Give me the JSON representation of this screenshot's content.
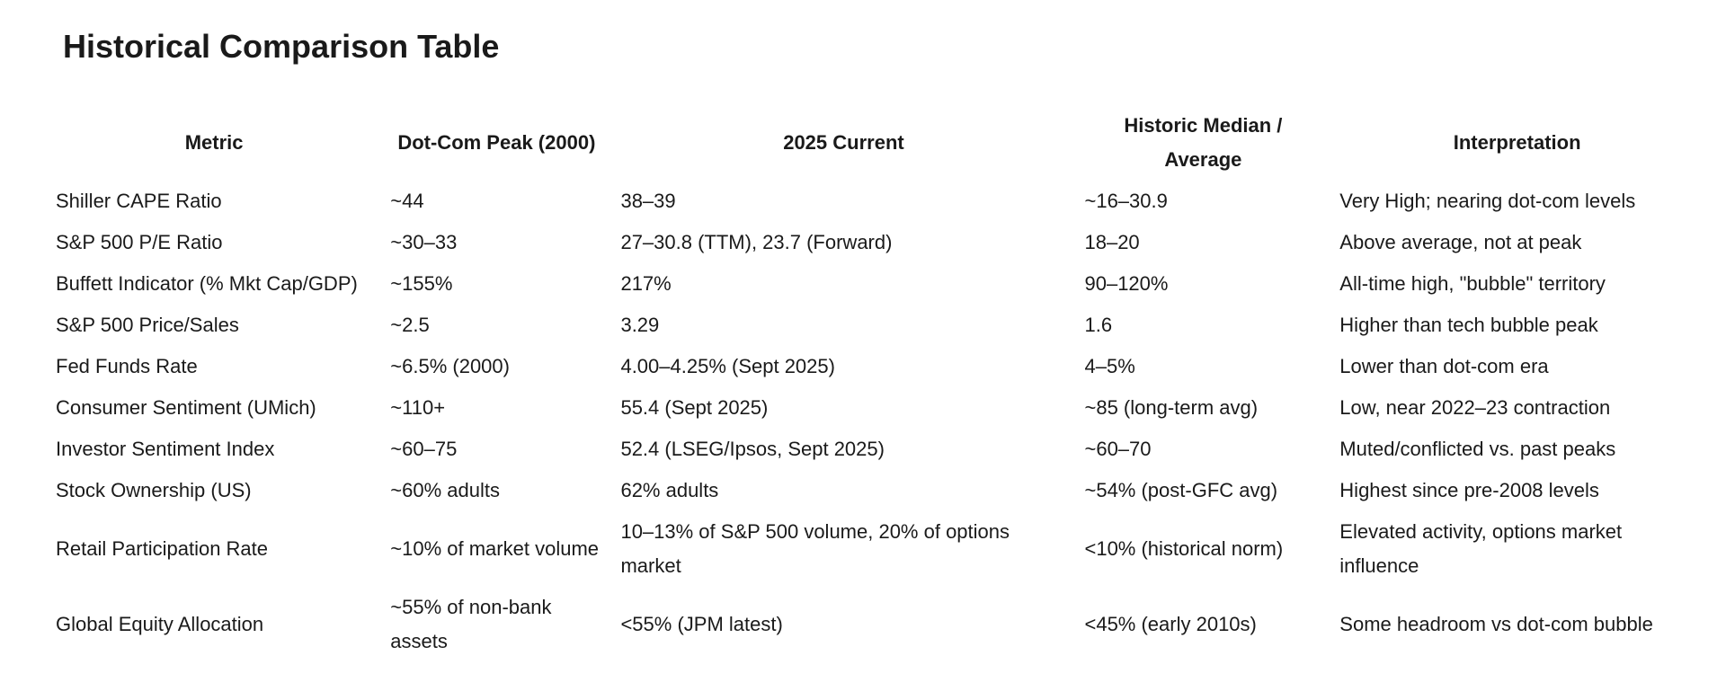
{
  "page": {
    "title": "Historical Comparison Table"
  },
  "colors": {
    "text": "#1a1a1a",
    "background": "#ffffff"
  },
  "table": {
    "columns": [
      {
        "label": "Metric"
      },
      {
        "label": "Dot-Com Peak (2000)"
      },
      {
        "label": "2025 Current"
      },
      {
        "label": "Historic Median / Average"
      },
      {
        "label": "Interpretation"
      }
    ],
    "rows": [
      [
        "Shiller CAPE Ratio",
        "~44",
        "38–39",
        "~16–30.9",
        "Very High; nearing dot-com levels"
      ],
      [
        "S&P 500 P/E Ratio",
        "~30–33",
        "27–30.8 (TTM), 23.7 (Forward)",
        "18–20",
        "Above average, not at peak"
      ],
      [
        "Buffett Indicator (% Mkt Cap/GDP)",
        "~155%",
        "217%",
        "90–120%",
        "All-time high, \"bubble\" territory"
      ],
      [
        "S&P 500 Price/Sales",
        "~2.5",
        "3.29",
        "1.6",
        "Higher than tech bubble peak"
      ],
      [
        "Fed Funds Rate",
        "~6.5% (2000)",
        "4.00–4.25% (Sept 2025)",
        "4–5%",
        "Lower than dot-com era"
      ],
      [
        "Consumer Sentiment (UMich)",
        "~110+",
        "55.4 (Sept 2025)",
        "~85 (long-term avg)",
        "Low, near 2022–23 contraction"
      ],
      [
        "Investor Sentiment Index",
        "~60–75",
        "52.4 (LSEG/Ipsos, Sept 2025)",
        "~60–70",
        "Muted/conflicted vs. past peaks"
      ],
      [
        "Stock Ownership (US)",
        "~60% adults",
        "62% adults",
        "~54% (post-GFC avg)",
        "Highest since pre-2008 levels"
      ],
      [
        "Retail Participation Rate",
        "~10% of market volume",
        "10–13% of S&P 500 volume, 20% of options market",
        "<10% (historical norm)",
        "Elevated activity, options market influence"
      ],
      [
        "Global Equity Allocation",
        "~55% of non-bank assets",
        "<55% (JPM latest)",
        "<45% (early 2010s)",
        "Some headroom vs dot-com bubble"
      ]
    ]
  }
}
